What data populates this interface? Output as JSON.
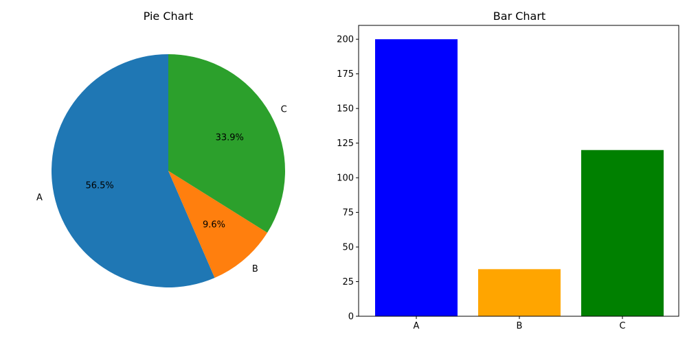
{
  "chart_data": [
    {
      "type": "pie",
      "title": "Pie Chart",
      "labels": [
        "A",
        "B",
        "C"
      ],
      "values": [
        56.5,
        9.6,
        33.9
      ],
      "pct_labels": [
        "56.5%",
        "9.6%",
        "33.9%"
      ],
      "colors": [
        "#1f77b4",
        "#ff7f0e",
        "#2ca02c"
      ],
      "start_angle_deg": 90,
      "direction": "counterclockwise"
    },
    {
      "type": "bar",
      "title": "Bar Chart",
      "categories": [
        "A",
        "B",
        "C"
      ],
      "values": [
        200,
        34,
        120
      ],
      "colors": [
        "#0000ff",
        "#ffa500",
        "#008000"
      ],
      "ylim": [
        0,
        210
      ],
      "yticks": [
        0,
        25,
        50,
        75,
        100,
        125,
        150,
        175,
        200
      ],
      "xlabel": "",
      "ylabel": "",
      "grid": false
    }
  ]
}
